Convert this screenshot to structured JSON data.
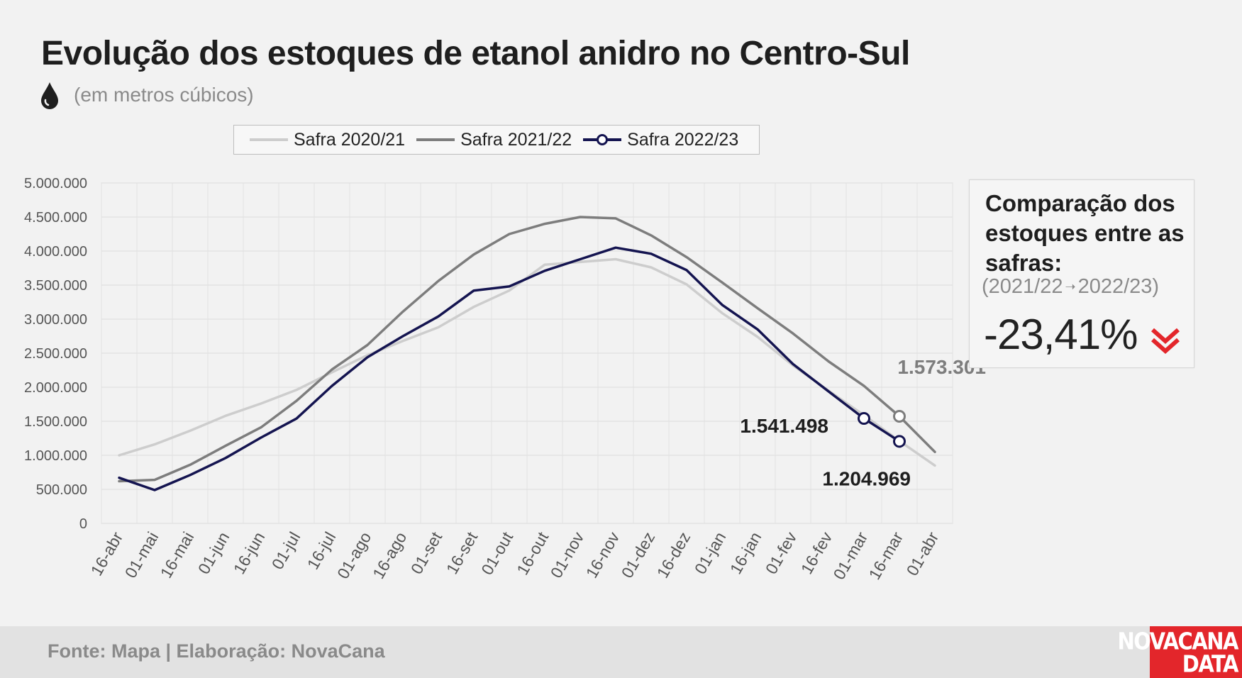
{
  "title": "Evolução dos estoques de etanol anidro no Centro-Sul",
  "subtitle": "(em metros cúbicos)",
  "icon": "drop-icon",
  "colors": {
    "s2021": "#cdcdcd",
    "s2122": "#7d7d7d",
    "s2223": "#141450",
    "accent": "#e3262b"
  },
  "chart_data": {
    "type": "line",
    "categories": [
      "16-abr",
      "01-mai",
      "16-mai",
      "01-jun",
      "16-jun",
      "01-jul",
      "16-jul",
      "01-ago",
      "16-ago",
      "01-set",
      "16-set",
      "01-out",
      "16-out",
      "01-nov",
      "16-nov",
      "01-dez",
      "16-dez",
      "01-jan",
      "16-jan",
      "01-fev",
      "16-fev",
      "01-mar",
      "16-mar",
      "01-abr"
    ],
    "ylim": [
      0,
      5000000
    ],
    "yticks": [
      0,
      500000,
      1000000,
      1500000,
      2000000,
      2500000,
      3000000,
      3500000,
      4000000,
      4500000,
      5000000
    ],
    "ytick_labels": [
      "0",
      "500.000",
      "1.000.000",
      "1.500.000",
      "2.000.000",
      "2.500.000",
      "3.000.000",
      "3.500.000",
      "4.000.000",
      "4.500.000",
      "5.000.000"
    ],
    "grid": true,
    "legend": "top",
    "series": [
      {
        "name": "Safra 2020/21",
        "key": "s2021",
        "values": [
          1000000,
          1160000,
          1360000,
          1580000,
          1760000,
          1960000,
          2220000,
          2470000,
          2680000,
          2880000,
          3180000,
          3420000,
          3800000,
          3840000,
          3880000,
          3760000,
          3510000,
          3090000,
          2740000,
          2320000,
          1950000,
          1590000,
          1210000,
          850000
        ]
      },
      {
        "name": "Safra 2021/22",
        "key": "s2122",
        "values": [
          620000,
          640000,
          860000,
          1140000,
          1410000,
          1800000,
          2260000,
          2620000,
          3110000,
          3560000,
          3950000,
          4250000,
          4400000,
          4500000,
          4480000,
          4230000,
          3910000,
          3540000,
          3160000,
          2790000,
          2380000,
          2020000,
          1573301,
          1050000
        ]
      },
      {
        "name": "Safra 2022/23",
        "key": "s2223",
        "markers": true,
        "values": [
          670000,
          490000,
          710000,
          960000,
          1260000,
          1540000,
          2020000,
          2440000,
          2750000,
          3040000,
          3420000,
          3480000,
          3710000,
          3880000,
          4050000,
          3960000,
          3720000,
          3210000,
          2850000,
          2340000,
          1940000,
          1541498,
          1204969,
          null
        ]
      }
    ],
    "annotations": [
      {
        "text": "1.573.301",
        "series": "s2122",
        "x": "16-mar",
        "y": 1573301
      },
      {
        "text": "1.541.498",
        "series": "s2223",
        "x": "01-mar",
        "y": 1541498
      },
      {
        "text": "1.204.969",
        "series": "s2223",
        "x": "16-mar",
        "y": 1204969
      }
    ]
  },
  "comparison": {
    "title": "Comparação dos estoques entre as safras:",
    "from": "(2021/22",
    "to": "2022/23)",
    "value": "-23,41%",
    "icon": "double-chevron-down-icon"
  },
  "footer": {
    "source": "Fonte: Mapa | Elaboração: NovaCana",
    "logo_line1": "NOVACANA",
    "logo_line2": "DATA"
  }
}
